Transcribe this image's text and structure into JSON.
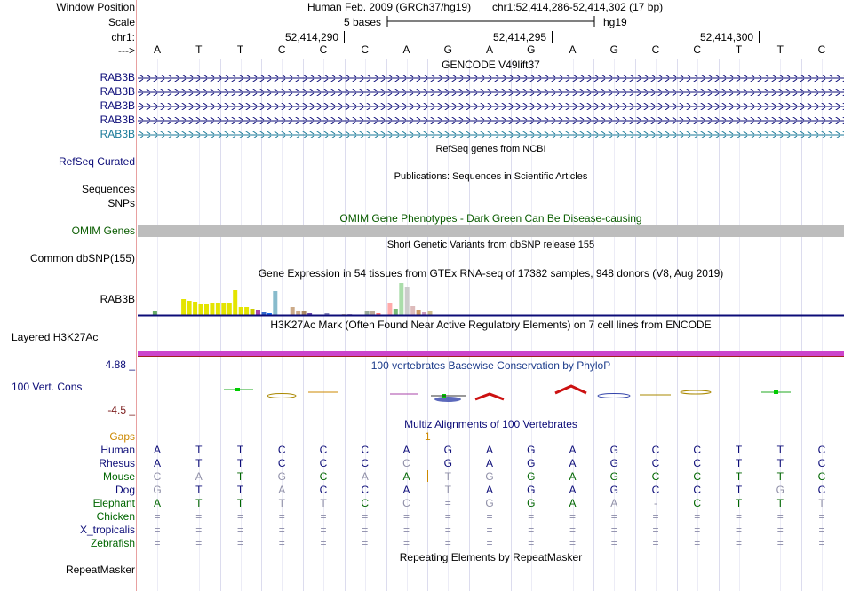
{
  "header": {
    "window_position_label": "Window Position",
    "scale_label": "Scale",
    "chrom_label": "chr1:",
    "strand_label": "--->",
    "assembly_text": "Human Feb. 2009 (GRCh37/hg19)",
    "position_text": "chr1:52,414,286-52,414,302 (17 bp)",
    "scale_text": "5 bases",
    "db_text": "hg19",
    "coords": [
      "52,414,290",
      "52,414,295",
      "52,414,300"
    ],
    "bases": [
      "A",
      "T",
      "T",
      "C",
      "C",
      "C",
      "A",
      "G",
      "A",
      "G",
      "A",
      "G",
      "C",
      "C",
      "T",
      "T",
      "C"
    ]
  },
  "gencode": {
    "title": "GENCODE V49lift37",
    "labels": [
      "RAB3B",
      "RAB3B",
      "RAB3B",
      "RAB3B",
      "RAB3B"
    ],
    "colors": [
      "#0c0c78",
      "#0c0c78",
      "#0c0c78",
      "#0c0c78",
      "#1a7a99"
    ]
  },
  "refseq": {
    "title": "RefSeq genes from NCBI",
    "label": "RefSeq Curated"
  },
  "publications": {
    "title": "Publications: Sequences in Scientific Articles",
    "label": "Sequences",
    "label2": "SNPs"
  },
  "omim": {
    "title": "OMIM Gene Phenotypes - Dark Green Can Be Disease-causing",
    "label": "OMIM Genes",
    "color": "#0a5c00"
  },
  "dbsnp": {
    "title": "Short Genetic Variants from dbSNP release 155",
    "label": "Common dbSNP(155)"
  },
  "gtex": {
    "title": "Gene Expression in 54 tissues from GTEx RNA-seq of 17382 samples, 948 donors (V8, Aug 2019)",
    "label": "RAB3B",
    "bar_values": [
      0,
      0,
      0.12,
      0,
      0,
      0,
      0,
      0.44,
      0.4,
      0.37,
      0.3,
      0.3,
      0.33,
      0.33,
      0.36,
      0.33,
      0.7,
      0.22,
      0.22,
      0.18,
      0.14,
      0.08,
      0.06,
      0.68,
      0,
      0,
      0.22,
      0.13,
      0.13,
      0.05,
      0,
      0,
      0.05,
      0,
      0,
      0.03,
      0.03,
      0,
      0,
      0.1,
      0.09,
      0.04,
      0,
      0.36,
      0.18,
      0.9,
      0.8,
      0.25,
      0.15,
      0.08,
      0.13,
      0,
      0,
      0
    ],
    "bar_colors": [
      "#ffaa00",
      "#ffaa00",
      "#66aa66",
      "#ff6655",
      "#ffaa00",
      "#ffaa00",
      "#9988cc",
      "#e4e400",
      "#e4e400",
      "#e4e400",
      "#e4e400",
      "#e4e400",
      "#e4e400",
      "#e4e400",
      "#e4e400",
      "#e4e400",
      "#e4e400",
      "#e4e400",
      "#e4e400",
      "#cccc00",
      "#aa44aa",
      "#3366cc",
      "#1166ee",
      "#88bbcc",
      "#999999",
      "#aaddcc",
      "#ccaa88",
      "#ccaa88",
      "#aa8866",
      "#6644aa",
      "#ffaa55",
      "#dd9966",
      "#8888bb",
      "#ff8866",
      "#bbaa88",
      "#ccbb99",
      "#aa99bb",
      "#cc9988",
      "#ccaa88",
      "#99aa99",
      "#bbaa99",
      "#ff7777",
      "#ddcc99",
      "#ffaaaa",
      "#77bb77",
      "#aaddaa",
      "#cccccc",
      "#ddbbbb",
      "#cc9966",
      "#cc99bb",
      "#ccbb88",
      "#aa8866",
      "#ffcc99",
      "#ffaa88"
    ]
  },
  "h3k27ac": {
    "title": "H3K27Ac Mark (Often Found Near Active Regulatory Elements) on 7 cell lines from ENCODE",
    "label": "Layered H3K27Ac"
  },
  "phylop": {
    "title": "100 vertebrates Basewise Conservation by PhyloP",
    "label": "100 Vert. Cons",
    "max_label": "4.88 _",
    "min_label": "-4.5 _"
  },
  "multiz": {
    "title": "Multiz Alignments of 100 Vertebrates",
    "gap_label": "Gaps",
    "gap_mark": "1",
    "species": [
      {
        "name": "Human",
        "color": "#0c0c78",
        "bases": [
          "A",
          "T",
          "T",
          "C",
          "C",
          "C",
          "A",
          "G",
          "A",
          "G",
          "A",
          "G",
          "C",
          "C",
          "T",
          "T",
          "C"
        ]
      },
      {
        "name": "Rhesus",
        "color": "#0c0c78",
        "bases": [
          "A",
          "T",
          "T",
          "C",
          "C",
          "C",
          "C",
          "G",
          "A",
          "G",
          "A",
          "G",
          "C",
          "C",
          "T",
          "T",
          "C"
        ]
      },
      {
        "name": "Mouse",
        "color": "#006600",
        "bases": [
          "C",
          "A",
          "T",
          "G",
          "C",
          "A",
          "A",
          "T",
          "G",
          "G",
          "A",
          "G",
          "C",
          "C",
          "T",
          "T",
          "C"
        ]
      },
      {
        "name": "Dog",
        "color": "#0c0c78",
        "bases": [
          "G",
          "T",
          "T",
          "A",
          "C",
          "C",
          "A",
          "T",
          "A",
          "G",
          "A",
          "G",
          "C",
          "C",
          "T",
          "G",
          "C"
        ]
      },
      {
        "name": "Elephant",
        "color": "#006600",
        "bases": [
          "A",
          "T",
          "T",
          "T",
          "T",
          "C",
          "C",
          "=",
          "G",
          "G",
          "A",
          "A",
          "-",
          "C",
          "T",
          "T",
          "T"
        ]
      },
      {
        "name": "Chicken",
        "color": "#006600",
        "bases": [
          "=",
          "=",
          "=",
          "=",
          "=",
          "=",
          "=",
          "=",
          "=",
          "=",
          "=",
          "=",
          "=",
          "=",
          "=",
          "=",
          "="
        ]
      },
      {
        "name": "X_tropicalis",
        "color": "#0c0c78",
        "bases": [
          "=",
          "=",
          "=",
          "=",
          "=",
          "=",
          "=",
          "=",
          "=",
          "=",
          "=",
          "=",
          "=",
          "=",
          "=",
          "=",
          "="
        ]
      },
      {
        "name": "Zebrafish",
        "color": "#006600",
        "bases": [
          "=",
          "=",
          "=",
          "=",
          "=",
          "=",
          "=",
          "=",
          "=",
          "=",
          "=",
          "=",
          "=",
          "=",
          "=",
          "=",
          "="
        ]
      }
    ]
  },
  "repeatmasker": {
    "title": "Repeating Elements by RepeatMasker",
    "label": "RepeatMasker"
  }
}
